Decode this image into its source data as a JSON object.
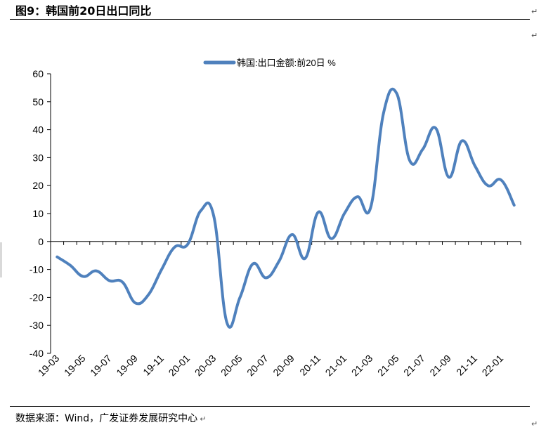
{
  "figure": {
    "title": "图9：韩国前20日出口同比",
    "source": "数据来源：Wind，广发证券发展研究中心",
    "para_mark": "↵"
  },
  "colors": {
    "series": "#4f81bd",
    "axis": "#000000",
    "text": "#000000"
  },
  "chart_data": {
    "type": "line",
    "legend_position": "top",
    "grid": false,
    "ylim": [
      -40,
      60
    ],
    "yticks": [
      -40,
      -30,
      -20,
      -10,
      0,
      10,
      20,
      30,
      40,
      50,
      60
    ],
    "x": [
      "19-03",
      "19-04",
      "19-05",
      "19-06",
      "19-07",
      "19-08",
      "19-09",
      "19-10",
      "19-11",
      "19-12",
      "20-01",
      "20-02",
      "20-03",
      "20-04",
      "20-05",
      "20-06",
      "20-07",
      "20-08",
      "20-09",
      "20-10",
      "20-11",
      "20-12",
      "21-01",
      "21-02",
      "21-03",
      "21-04",
      "21-05",
      "21-06",
      "21-07",
      "21-08",
      "21-09",
      "21-10",
      "21-11",
      "21-12",
      "22-01",
      "22-02"
    ],
    "xtick_labels": [
      "19-03",
      "19-05",
      "19-07",
      "19-09",
      "19-11",
      "20-01",
      "20-03",
      "20-05",
      "20-07",
      "20-09",
      "20-11",
      "21-01",
      "21-03",
      "21-05",
      "21-07",
      "21-09",
      "21-11",
      "22-01"
    ],
    "series": [
      {
        "name": "韩国:出口金额:前20日 %",
        "values": [
          -5.5,
          -8.5,
          -12.5,
          -10.5,
          -14,
          -14.5,
          -22,
          -19,
          -10,
          -2,
          -1,
          11,
          9,
          -29,
          -20,
          -8,
          -13,
          -7,
          2.5,
          -6,
          10.5,
          1,
          10,
          16,
          12,
          46,
          53,
          29,
          33,
          40.5,
          23,
          36,
          27,
          20,
          22,
          13
        ]
      }
    ]
  }
}
